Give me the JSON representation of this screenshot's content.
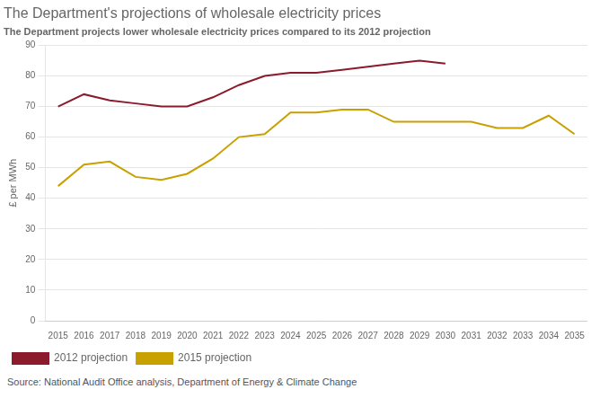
{
  "chart_data": {
    "type": "line",
    "title": "The Department's projections of wholesale electricity prices",
    "subtitle": "The Department projects lower wholesale electricity prices compared to its 2012 projection",
    "ylabel": "£ per MWh",
    "source": "Source: National Audit Office analysis, Department of Energy & Climate Change",
    "xlim": [
      2014.5,
      2035.5
    ],
    "xticks": [
      2015,
      2016,
      2017,
      2018,
      2019,
      2020,
      2021,
      2022,
      2023,
      2024,
      2025,
      2026,
      2027,
      2028,
      2029,
      2030,
      2031,
      2032,
      2033,
      2034,
      2035
    ],
    "ylim": [
      0,
      90
    ],
    "yticks": [
      0,
      10,
      20,
      30,
      40,
      50,
      60,
      70,
      80,
      90
    ],
    "grid": "y",
    "legend": "bottom",
    "series": [
      {
        "name": "2012 projection",
        "color": "#8B1A2D",
        "x": [
          2015,
          2016,
          2017,
          2018,
          2019,
          2020,
          2021,
          2022,
          2023,
          2024,
          2025,
          2026,
          2027,
          2028,
          2029,
          2030
        ],
        "values": [
          70,
          74,
          72,
          71,
          70,
          70,
          73,
          77,
          80,
          81,
          81,
          82,
          83,
          84,
          85,
          84
        ]
      },
      {
        "name": "2015 projection",
        "color": "#C8A000",
        "x": [
          2015,
          2016,
          2017,
          2018,
          2019,
          2020,
          2021,
          2022,
          2023,
          2024,
          2025,
          2026,
          2027,
          2028,
          2029,
          2030,
          2031,
          2032,
          2033,
          2034,
          2035
        ],
        "values": [
          44,
          51,
          52,
          47,
          46,
          48,
          53,
          60,
          61,
          68,
          68,
          69,
          69,
          65,
          65,
          65,
          65,
          63,
          63,
          67,
          61
        ]
      }
    ]
  }
}
